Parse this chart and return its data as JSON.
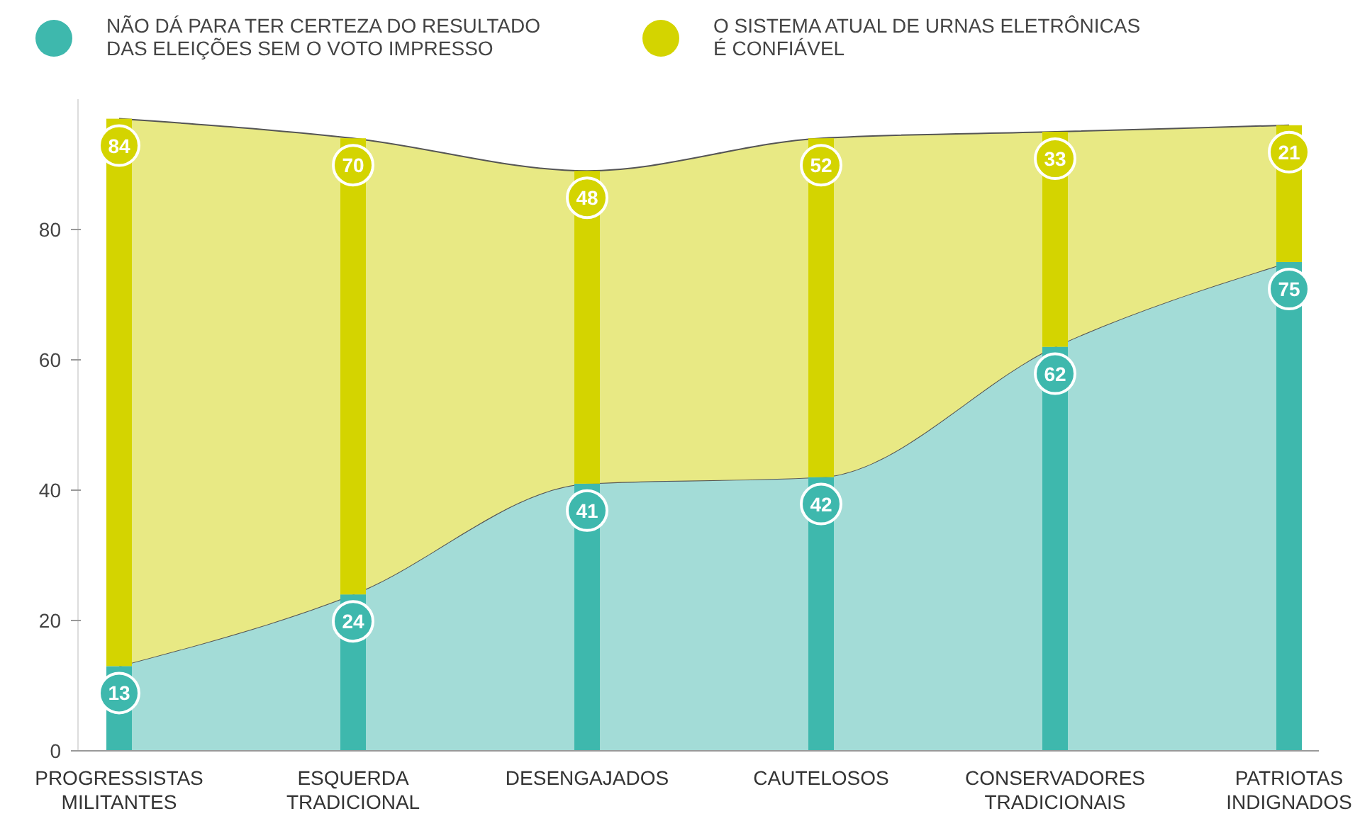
{
  "chart_data": [
    {
      "type": "area",
      "stacked": true,
      "grid": false,
      "tick_labels": "y",
      "categories": [
        null,
        null,
        null,
        null,
        null,
        null
      ],
      "ylim": [
        0,
        100
      ],
      "yticks": [
        0,
        20,
        40,
        60,
        80
      ],
      "series": [
        {
          "color": "#a3dcd7",
          "values": [
            13,
            24,
            41,
            42,
            62,
            75
          ]
        },
        {
          "color": "#e8e984",
          "values": [
            84,
            70,
            48,
            52,
            33,
            21
          ]
        }
      ]
    },
    {
      "type": "bar",
      "stacked": true,
      "data_labels": true,
      "legend": "top left",
      "grid": false,
      "tick_labels": "x",
      "categories": [
        "PROGRESSISTAS MILITANTES",
        "ESQUERDA TRADICIONAL",
        "DESENGAJADOS",
        "CAUTELOSOS",
        "CONSERVADORES TRADICIONAIS",
        "PATRIOTAS INDIGNADOS"
      ],
      "ylim": [
        0,
        100
      ],
      "yticks": [
        0,
        20,
        40,
        60,
        80
      ],
      "series": [
        {
          "name": "NÃO DÁ PARA TER CERTEZA DO RESULTADO DAS ELEIÇÕES SEM O VOTO IMPRESSO",
          "color": "#3eb8ad",
          "values": [
            13,
            24,
            41,
            42,
            62,
            75
          ]
        },
        {
          "name": "O SISTEMA ATUAL DE URNAS ELETRÔNICAS É CONFIÁVEL",
          "color": "#d4d400",
          "values": [
            84,
            70,
            48,
            52,
            33,
            21
          ]
        }
      ]
    }
  ]
}
